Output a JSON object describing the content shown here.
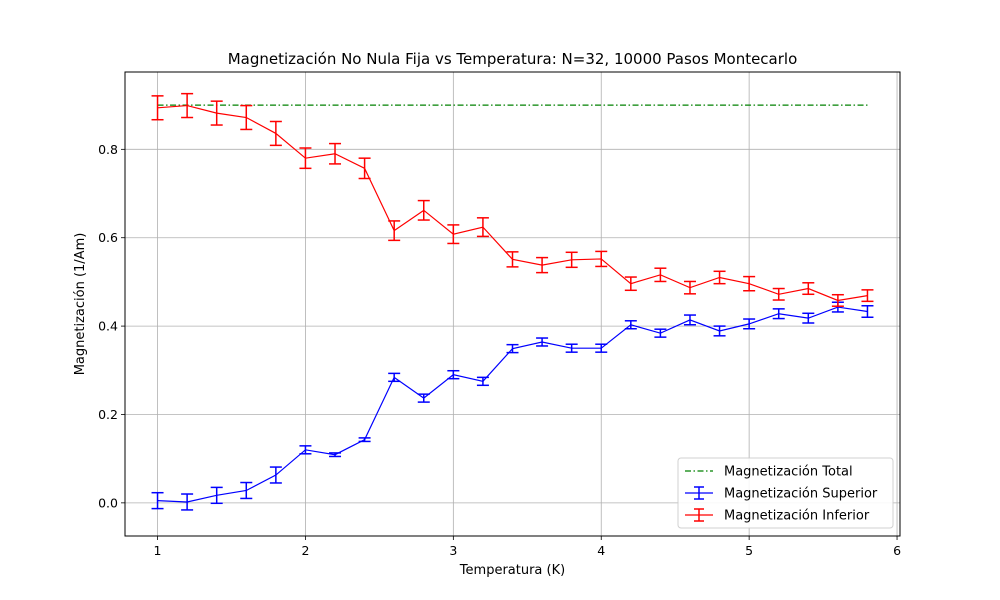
{
  "chart_data": {
    "type": "line",
    "title": "Magnetización No Nula Fija vs Temperatura: N=32, 10000 Pasos Montecarlo",
    "xlabel": "Temperatura (K)",
    "ylabel": "Magnetización (1/Am)",
    "xlim": [
      0.78,
      6.02
    ],
    "ylim": [
      -0.075,
      0.975
    ],
    "xticks": [
      1,
      2,
      3,
      4,
      5,
      6
    ],
    "yticks": [
      0.0,
      0.2,
      0.4,
      0.6,
      0.8
    ],
    "xtick_labels": [
      "1",
      "2",
      "3",
      "4",
      "5",
      "6"
    ],
    "ytick_labels": [
      "0.0",
      "0.2",
      "0.4",
      "0.6",
      "0.8"
    ],
    "grid": true,
    "legend_position": "lower-right",
    "x": [
      1.0,
      1.2,
      1.4,
      1.6,
      1.8,
      2.0,
      2.2,
      2.4,
      2.6,
      2.8,
      3.0,
      3.2,
      3.4,
      3.6,
      3.8,
      4.0,
      4.2,
      4.4,
      4.6,
      4.8,
      5.0,
      5.2,
      5.4,
      5.6,
      5.8
    ],
    "series": [
      {
        "name": "Magnetización Total",
        "color": "#008000",
        "style": "dash-dot",
        "x": [
          1.0,
          5.8
        ],
        "values": [
          0.9,
          0.9
        ]
      },
      {
        "name": "Magnetización Superior",
        "color": "#0000ff",
        "style": "solid-errorbar",
        "values": [
          0.005,
          0.002,
          0.017,
          0.028,
          0.063,
          0.12,
          0.109,
          0.143,
          0.284,
          0.237,
          0.29,
          0.275,
          0.349,
          0.364,
          0.35,
          0.35,
          0.403,
          0.384,
          0.414,
          0.389,
          0.405,
          0.428,
          0.418,
          0.443,
          0.433
        ],
        "errors": [
          0.018,
          0.018,
          0.018,
          0.018,
          0.018,
          0.009,
          0.004,
          0.004,
          0.009,
          0.009,
          0.009,
          0.009,
          0.009,
          0.009,
          0.009,
          0.009,
          0.009,
          0.009,
          0.011,
          0.011,
          0.011,
          0.011,
          0.011,
          0.011,
          0.013
        ]
      },
      {
        "name": "Magnetización Inferior",
        "color": "#ff0000",
        "style": "solid-errorbar",
        "values": [
          0.894,
          0.899,
          0.882,
          0.872,
          0.836,
          0.78,
          0.79,
          0.757,
          0.616,
          0.662,
          0.608,
          0.624,
          0.551,
          0.538,
          0.55,
          0.552,
          0.496,
          0.516,
          0.487,
          0.51,
          0.496,
          0.472,
          0.485,
          0.458,
          0.469
        ],
        "errors": [
          0.027,
          0.027,
          0.027,
          0.027,
          0.027,
          0.023,
          0.023,
          0.023,
          0.022,
          0.022,
          0.021,
          0.021,
          0.017,
          0.017,
          0.017,
          0.017,
          0.015,
          0.015,
          0.014,
          0.014,
          0.016,
          0.013,
          0.013,
          0.013,
          0.013
        ]
      }
    ]
  }
}
